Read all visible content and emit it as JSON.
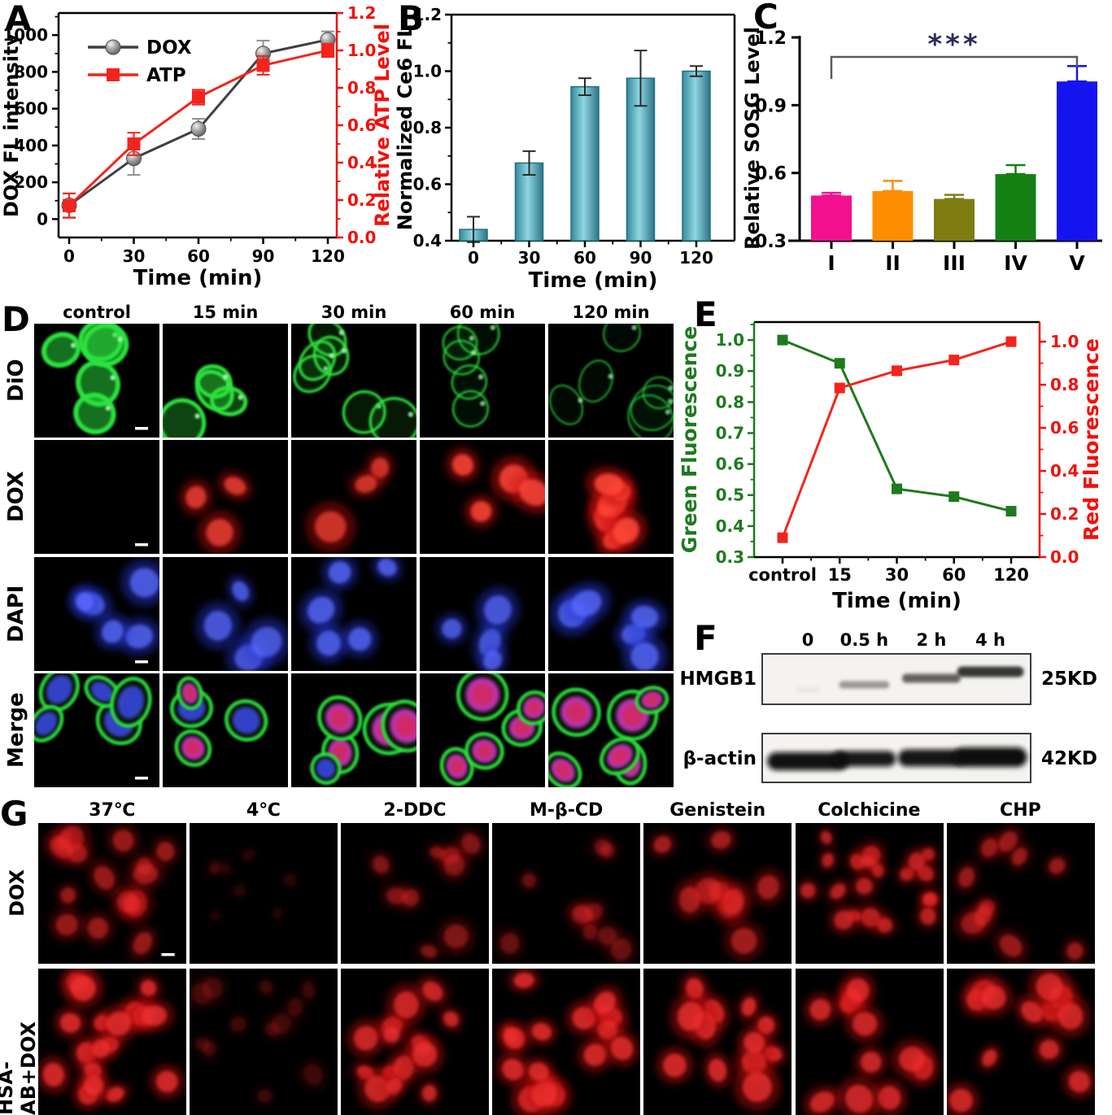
{
  "panel_letters": {
    "a": "A",
    "b": "B",
    "c": "C",
    "d": "D",
    "e": "E",
    "f": "F",
    "g": "G"
  },
  "chart_data": [
    {
      "panel": "A",
      "type": "line",
      "xlabel": "Time (min)",
      "x_tick_labels": [
        "0",
        "30",
        "60",
        "90",
        "120"
      ],
      "left_axis": {
        "label": "DOX FL intensity",
        "ticks": [
          "0",
          "200",
          "400",
          "600",
          "800",
          "1000"
        ],
        "tick_values": [
          0,
          200,
          400,
          600,
          800,
          1000
        ],
        "minor_values": [
          100,
          300,
          500,
          700,
          900,
          1100
        ],
        "range": [
          -100,
          1120
        ],
        "color": "#000000"
      },
      "right_axis": {
        "label": "Relative ATP Level",
        "ticks": [
          "0.0",
          "0.2",
          "0.4",
          "0.6",
          "0.8",
          "1.0",
          "1.2"
        ],
        "tick_values": [
          0,
          0.2,
          0.4,
          0.6,
          0.8,
          1,
          1.2
        ],
        "minor_values": [
          0.1,
          0.3,
          0.5,
          0.7,
          0.9,
          1.1
        ],
        "range": [
          0,
          1.2
        ],
        "color": "#f2100c"
      },
      "series": [
        {
          "name": "DOX",
          "axis": "left",
          "line_color": "#3f3f3f",
          "marker": "sphere",
          "marker_color": "#a0a0a0",
          "error_color": "#909090",
          "values": [
            75,
            330,
            490,
            900,
            975
          ],
          "errors": [
            65,
            90,
            55,
            70,
            45
          ]
        },
        {
          "name": "ATP",
          "axis": "right",
          "line_color": "#f3241e",
          "marker": "square",
          "marker_color": "#f3241e",
          "error_color": "#f3241e",
          "values": [
            0.17,
            0.5,
            0.75,
            0.92,
            1.0
          ],
          "errors": [
            0.065,
            0.06,
            0.04,
            0.05,
            0.035
          ]
        }
      ],
      "legend_position": "top-left"
    },
    {
      "panel": "B",
      "type": "bar",
      "xlabel": "Time (min)",
      "ylabel": "Normalized Ce6 FL",
      "categories": [
        "0",
        "30",
        "60",
        "90",
        "120"
      ],
      "ylim": [
        0.4,
        1.2
      ],
      "yticks": [
        "0.4",
        "0.6",
        "0.8",
        "1.0",
        "1.2"
      ],
      "ytick_values": [
        0.4,
        0.6,
        0.8,
        1.0,
        1.2
      ],
      "yminor_values": [
        0.5,
        0.7,
        0.9,
        1.1
      ],
      "values": [
        0.44,
        0.675,
        0.945,
        0.975,
        1.0
      ],
      "errors": [
        0.045,
        0.042,
        0.03,
        0.098,
        0.018
      ],
      "bar_color": "#4aa8bc",
      "bar_edge": "#20707f"
    },
    {
      "panel": "C",
      "type": "bar",
      "ylabel": "Relative SOSG Level",
      "categories": [
        "I",
        "II",
        "III",
        "IV",
        "V"
      ],
      "ylim": [
        0.3,
        1.2
      ],
      "yticks": [
        "0.3",
        "0.6",
        "0.9",
        "1.2"
      ],
      "ytick_values": [
        0.3,
        0.6,
        0.9,
        1.2
      ],
      "values": [
        0.5,
        0.52,
        0.485,
        0.595,
        1.005
      ],
      "errors": [
        0.012,
        0.045,
        0.018,
        0.04,
        0.068
      ],
      "bar_colors": [
        "#f2108e",
        "#ff8d00",
        "#7f7c12",
        "#148014",
        "#1414f0"
      ],
      "significance": {
        "text": "***",
        "from_index": 0,
        "to_index": 4,
        "star_color": "#2d2d5a",
        "bracket_color": "#5a5a5a"
      }
    },
    {
      "panel": "E",
      "type": "line",
      "xlabel": "Time (min)",
      "x_tick_labels": [
        "control",
        "15",
        "30",
        "60",
        "120"
      ],
      "left_axis": {
        "label": "Green Fluorescence",
        "ticks": [
          "0.3",
          "0.4",
          "0.5",
          "0.6",
          "0.7",
          "0.8",
          "0.9",
          "1.0"
        ],
        "tick_values": [
          0.3,
          0.4,
          0.5,
          0.6,
          0.7,
          0.8,
          0.9,
          1.0
        ],
        "minor_values": [
          0.35,
          0.45,
          0.55,
          0.65,
          0.75,
          0.85,
          0.95,
          1.05
        ],
        "range": [
          0.3,
          1.058
        ],
        "color": "#1e7a1e"
      },
      "right_axis": {
        "label": "Red Fluorescence",
        "ticks": [
          "0.0",
          "0.2",
          "0.4",
          "0.6",
          "0.8",
          "1.0"
        ],
        "tick_values": [
          0,
          0.2,
          0.4,
          0.6,
          0.8,
          1.0
        ],
        "minor_values": [
          0.1,
          0.3,
          0.5,
          0.7,
          0.9
        ],
        "range": [
          0,
          1.091
        ],
        "color": "#f2100c"
      },
      "series": [
        {
          "name": "Green Fluorescence",
          "axis": "left",
          "line_color": "#1e7a1e",
          "marker": "square",
          "marker_color": "#1e7a1e",
          "values": [
            1.0,
            0.925,
            0.52,
            0.495,
            0.448
          ]
        },
        {
          "name": "Red Fluorescence",
          "axis": "right",
          "line_color": "#f3241e",
          "marker": "square",
          "marker_color": "#f3241e",
          "values": [
            0.09,
            0.785,
            0.865,
            0.915,
            1.0
          ]
        }
      ]
    }
  ],
  "panel_d": {
    "column_headers": [
      "control",
      "15 min",
      "30 min",
      "60 min",
      "120 min"
    ],
    "rows": [
      {
        "label": "DiO",
        "style": "ring",
        "color": "#2ae23c",
        "dot_color": "#b8ffc0",
        "counts": [
          5,
          4,
          6,
          5,
          6
        ],
        "ring_widths": [
          6,
          5,
          3.5,
          2.5,
          2
        ],
        "fill_opacities": [
          0.5,
          0.3,
          0.12,
          0.08,
          0.05
        ],
        "intensities": [
          1,
          1,
          0.95,
          0.85,
          0.8
        ]
      },
      {
        "label": "DOX",
        "style": "solid",
        "color": "#d01010",
        "color2": "#ff4a3a",
        "counts": [
          0,
          3,
          3,
          4,
          6
        ],
        "intensities": [
          0,
          0.8,
          0.75,
          0.9,
          0.95
        ]
      },
      {
        "label": "DAPI",
        "style": "solid",
        "color": "#2638d8",
        "color2": "#5a6cff",
        "counts": [
          5,
          4,
          5,
          4,
          5
        ],
        "intensities": [
          0.85,
          0.8,
          0.85,
          0.8,
          0.85
        ]
      },
      {
        "label": "Merge",
        "style": "merge",
        "ring_color": "#2ae23c",
        "nucleus_blue": "#3848e0",
        "nucleus_magenta": "#d438c8",
        "overlay_red": "#e02020",
        "counts": [
          5,
          4,
          5,
          5,
          6
        ],
        "magenta_fractions": [
          0.05,
          0.65,
          0.8,
          0.9,
          1.0
        ]
      }
    ]
  },
  "panel_f": {
    "lane_labels": [
      "0",
      "0.5 h",
      "2 h",
      "4 h"
    ],
    "blots": [
      {
        "protein": "HMGB1",
        "size_label": "25KD",
        "band_intensities": [
          0.07,
          0.42,
          0.68,
          0.88
        ]
      },
      {
        "protein": "β-actin",
        "size_label": "42KD",
        "band_intensities": [
          0.98,
          0.95,
          0.96,
          1.0
        ]
      }
    ]
  },
  "panel_g": {
    "column_headers": [
      "37℃",
      "4℃",
      "2-DDC",
      "M-β-CD",
      "Genistein",
      "Colchicine",
      "CHP"
    ],
    "color": "#c01010",
    "color2": "#f03030",
    "rows": [
      {
        "label": "DOX",
        "counts": [
          16,
          8,
          9,
          10,
          9,
          20,
          10
        ],
        "intensities": [
          0.55,
          0.12,
          0.45,
          0.35,
          0.6,
          0.7,
          0.55
        ],
        "sizes": [
          1.0,
          0.5,
          0.9,
          0.8,
          1.0,
          0.7,
          0.9
        ]
      },
      {
        "label": "HSA-AB+DOX",
        "counts": [
          18,
          12,
          14,
          16,
          12,
          12,
          12
        ],
        "intensities": [
          0.85,
          0.2,
          0.8,
          0.85,
          0.85,
          0.8,
          0.8
        ],
        "sizes": [
          1.0,
          0.8,
          1.0,
          1.0,
          1.1,
          1.0,
          1.1
        ]
      }
    ]
  }
}
